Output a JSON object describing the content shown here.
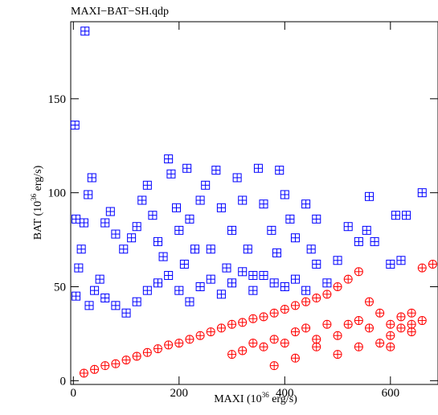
{
  "chart_data": {
    "type": "scatter",
    "title": "MAXI−BAT−SH.qdp",
    "xlabel": {
      "prefix": "MAXI (10",
      "exp": "36",
      "suffix": " erg/s)"
    },
    "ylabel": {
      "prefix": "BAT (10",
      "exp": "36",
      "suffix": " erg/s)"
    },
    "xlim": [
      -5,
      690
    ],
    "ylim": [
      -2,
      191
    ],
    "xticks": [
      {
        "value": 0,
        "label": "0"
      },
      {
        "value": 200,
        "label": "200"
      },
      {
        "value": 400,
        "label": "400"
      },
      {
        "value": 600,
        "label": "600"
      }
    ],
    "yticks": [
      {
        "value": 0,
        "label": "0"
      },
      {
        "value": 50,
        "label": "50"
      },
      {
        "value": 100,
        "label": "100"
      },
      {
        "value": 150,
        "label": "150"
      }
    ],
    "grid": false,
    "series": [
      {
        "marker": "square-plus",
        "color": "#0000ff",
        "points": [
          [
            22,
            186
          ],
          [
            3,
            136
          ],
          [
            5,
            86
          ],
          [
            5,
            45
          ],
          [
            10,
            60
          ],
          [
            15,
            70
          ],
          [
            20,
            84
          ],
          [
            28,
            99
          ],
          [
            35,
            108
          ],
          [
            60,
            84
          ],
          [
            70,
            90
          ],
          [
            80,
            78
          ],
          [
            95,
            70
          ],
          [
            110,
            76
          ],
          [
            120,
            82
          ],
          [
            130,
            96
          ],
          [
            140,
            104
          ],
          [
            150,
            88
          ],
          [
            160,
            74
          ],
          [
            170,
            66
          ],
          [
            180,
            118
          ],
          [
            185,
            110
          ],
          [
            195,
            92
          ],
          [
            200,
            80
          ],
          [
            210,
            62
          ],
          [
            215,
            113
          ],
          [
            220,
            86
          ],
          [
            230,
            70
          ],
          [
            240,
            96
          ],
          [
            250,
            104
          ],
          [
            260,
            70
          ],
          [
            270,
            112
          ],
          [
            280,
            92
          ],
          [
            290,
            60
          ],
          [
            300,
            80
          ],
          [
            310,
            108
          ],
          [
            320,
            96
          ],
          [
            330,
            70
          ],
          [
            340,
            56
          ],
          [
            350,
            113
          ],
          [
            360,
            94
          ],
          [
            375,
            80
          ],
          [
            385,
            68
          ],
          [
            390,
            112
          ],
          [
            400,
            99
          ],
          [
            410,
            86
          ],
          [
            420,
            76
          ],
          [
            440,
            94
          ],
          [
            450,
            70
          ],
          [
            460,
            86
          ],
          [
            480,
            52
          ],
          [
            500,
            64
          ],
          [
            520,
            82
          ],
          [
            540,
            74
          ],
          [
            555,
            80
          ],
          [
            560,
            98
          ],
          [
            570,
            74
          ],
          [
            610,
            88
          ],
          [
            630,
            88
          ],
          [
            660,
            100
          ],
          [
            600,
            62
          ],
          [
            620,
            64
          ],
          [
            30,
            40
          ],
          [
            40,
            48
          ],
          [
            50,
            54
          ],
          [
            60,
            44
          ],
          [
            80,
            40
          ],
          [
            100,
            36
          ],
          [
            120,
            42
          ],
          [
            140,
            48
          ],
          [
            160,
            52
          ],
          [
            180,
            56
          ],
          [
            200,
            48
          ],
          [
            220,
            42
          ],
          [
            240,
            50
          ],
          [
            260,
            54
          ],
          [
            280,
            46
          ],
          [
            300,
            52
          ],
          [
            320,
            58
          ],
          [
            340,
            48
          ],
          [
            360,
            56
          ],
          [
            380,
            52
          ],
          [
            400,
            50
          ],
          [
            420,
            54
          ],
          [
            440,
            48
          ],
          [
            460,
            62
          ]
        ]
      },
      {
        "marker": "circle-plus",
        "color": "#ff0000",
        "points": [
          [
            20,
            4
          ],
          [
            40,
            6
          ],
          [
            60,
            8
          ],
          [
            80,
            9
          ],
          [
            100,
            11
          ],
          [
            120,
            13
          ],
          [
            140,
            15
          ],
          [
            160,
            17
          ],
          [
            180,
            19
          ],
          [
            200,
            20
          ],
          [
            220,
            22
          ],
          [
            240,
            24
          ],
          [
            260,
            26
          ],
          [
            280,
            28
          ],
          [
            300,
            30
          ],
          [
            320,
            31
          ],
          [
            340,
            33
          ],
          [
            360,
            34
          ],
          [
            380,
            36
          ],
          [
            400,
            38
          ],
          [
            420,
            40
          ],
          [
            440,
            42
          ],
          [
            460,
            44
          ],
          [
            480,
            46
          ],
          [
            500,
            50
          ],
          [
            520,
            54
          ],
          [
            540,
            58
          ],
          [
            560,
            42
          ],
          [
            580,
            36
          ],
          [
            600,
            30
          ],
          [
            620,
            34
          ],
          [
            640,
            36
          ],
          [
            660,
            60
          ],
          [
            680,
            62
          ],
          [
            300,
            14
          ],
          [
            320,
            16
          ],
          [
            340,
            20
          ],
          [
            360,
            18
          ],
          [
            380,
            22
          ],
          [
            400,
            20
          ],
          [
            420,
            26
          ],
          [
            440,
            28
          ],
          [
            460,
            22
          ],
          [
            480,
            30
          ],
          [
            500,
            24
          ],
          [
            520,
            30
          ],
          [
            540,
            32
          ],
          [
            560,
            28
          ],
          [
            600,
            24
          ],
          [
            620,
            28
          ],
          [
            640,
            30
          ],
          [
            660,
            32
          ],
          [
            380,
            8
          ],
          [
            420,
            12
          ],
          [
            460,
            18
          ],
          [
            500,
            14
          ],
          [
            540,
            18
          ],
          [
            580,
            20
          ],
          [
            600,
            18
          ],
          [
            640,
            26
          ]
        ]
      }
    ]
  }
}
